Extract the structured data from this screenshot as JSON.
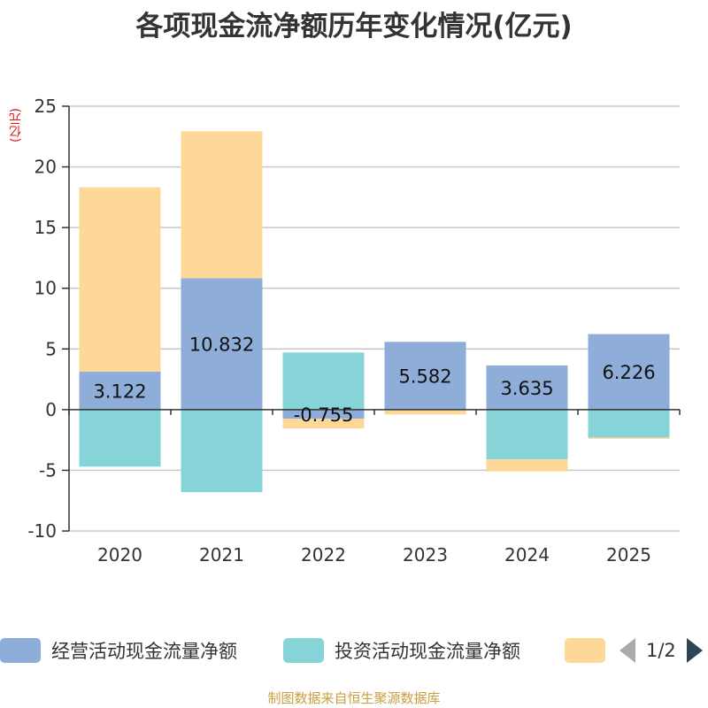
{
  "title": "各项现金流净额历年变化情况(亿元)",
  "unit_label": "(亿元)",
  "footer": "制图数据来自恒生聚源数据库",
  "legend": {
    "page_indicator": "1/2"
  },
  "colors": {
    "operating": "#8eadd9",
    "investing": "#87d4d8",
    "financing": "#fdd898"
  },
  "chart_data": {
    "type": "bar",
    "stacked": true,
    "title": "各项现金流净额历年变化情况(亿元)",
    "ylabel": "(亿元)",
    "xlabel": "",
    "categories": [
      "2020",
      "2021",
      "2022",
      "2023",
      "2024",
      "2025"
    ],
    "ylim": [
      -10,
      25
    ],
    "yticks": [
      -10,
      -5,
      0,
      5,
      10,
      15,
      20,
      25
    ],
    "series": [
      {
        "name": "经营活动现金流量净额",
        "values": [
          3.122,
          10.832,
          -0.755,
          5.582,
          3.635,
          6.226
        ],
        "labels": [
          "3.122",
          "10.832",
          "-0.755",
          "5.582",
          "3.635",
          "6.226"
        ]
      },
      {
        "name": "投资活动现金流量净额",
        "values": [
          -4.7,
          -6.8,
          4.7,
          0.0,
          -4.1,
          -2.3
        ]
      },
      {
        "name": "",
        "values": [
          15.2,
          12.1,
          -0.8,
          -0.4,
          -1.0,
          -0.1
        ]
      }
    ],
    "grid": true,
    "legend_position": "bottom"
  }
}
